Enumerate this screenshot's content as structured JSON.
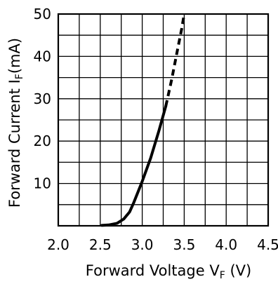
{
  "chart_data": {
    "type": "line",
    "xlabel": {
      "main": "Forward Voltage V",
      "sub": "F",
      "unit": "(V)"
    },
    "ylabel": {
      "main": "Forward Current I",
      "sub": "F",
      "unit": "(mA)"
    },
    "xlim": [
      2.0,
      4.5
    ],
    "ylim": [
      0,
      50
    ],
    "x_ticks": [
      2.0,
      2.5,
      3.0,
      3.5,
      4.0,
      4.5
    ],
    "x_tick_labels": [
      "2.0",
      "2.5",
      "3.0",
      "3.5",
      "4.0",
      "4.5"
    ],
    "y_ticks": [
      10,
      20,
      30,
      40,
      50
    ],
    "y_tick_labels": [
      "10",
      "20",
      "30",
      "40",
      "50"
    ],
    "x_minor_step": 0.25,
    "y_minor_step": 5,
    "grid": true,
    "legend": "none",
    "series": [
      {
        "style": "solid",
        "color": "#000000",
        "points": [
          [
            2.52,
            0.1
          ],
          [
            2.6,
            0.2
          ],
          [
            2.7,
            0.6
          ],
          [
            2.78,
            1.6
          ],
          [
            2.85,
            3.3
          ],
          [
            2.9,
            5.5
          ],
          [
            3.0,
            10.5
          ],
          [
            3.1,
            16.0
          ],
          [
            3.2,
            22.5
          ],
          [
            3.28,
            28.2
          ]
        ]
      },
      {
        "style": "dashed",
        "color": "#000000",
        "points": [
          [
            3.28,
            28.2
          ],
          [
            3.35,
            34.5
          ],
          [
            3.42,
            41.5
          ],
          [
            3.47,
            46.5
          ],
          [
            3.5,
            50
          ]
        ]
      }
    ]
  }
}
